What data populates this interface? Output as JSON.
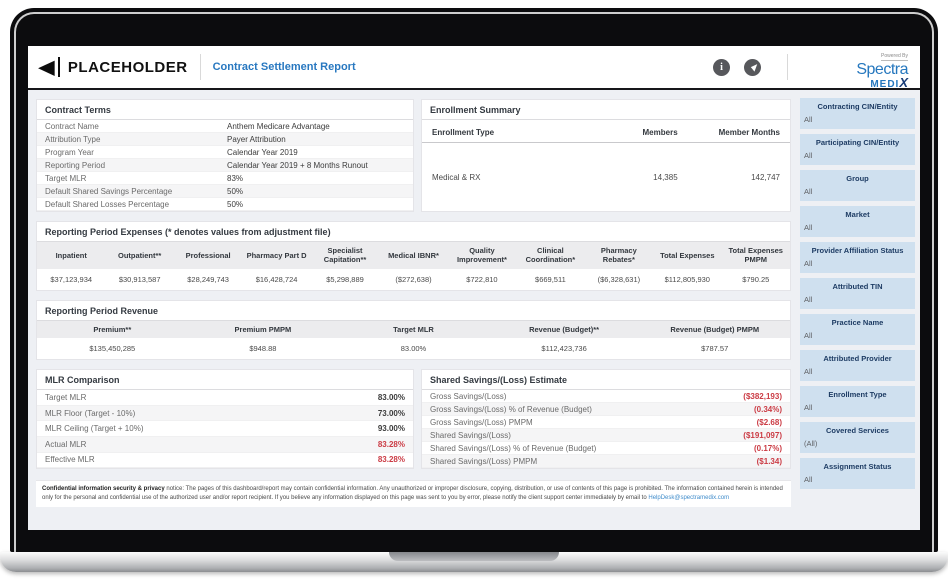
{
  "colors": {
    "accent_blue": "#2878c0",
    "negative_red": "#cb3b44",
    "filter_bg": "#cfe0ef",
    "filter_title": "#1e3c64"
  },
  "header": {
    "logo_text": "PLACEHOLDER",
    "report_title": "Contract Settlement Report",
    "info_icon": "i",
    "powered_by": "Powered By",
    "brand_name_top": "Spectra",
    "brand_name_bottom": "MEDI",
    "brand_x": "X"
  },
  "contract_terms": {
    "title": "Contract Terms",
    "rows": [
      {
        "label": "Contract Name",
        "value": "Anthem Medicare Advantage"
      },
      {
        "label": "Attribution Type",
        "value": "Payer Attribution"
      },
      {
        "label": "Program Year",
        "value": "Calendar Year 2019"
      },
      {
        "label": "Reporting Period",
        "value": "Calendar Year 2019 + 8 Months Runout"
      },
      {
        "label": "Target MLR",
        "value": "83%"
      },
      {
        "label": "Default Shared Savings Percentage",
        "value": "50%"
      },
      {
        "label": "Default Shared Losses Percentage",
        "value": "50%"
      }
    ]
  },
  "enrollment_summary": {
    "title": "Enrollment Summary",
    "columns": [
      "Enrollment Type",
      "Members",
      "Member Months"
    ],
    "rows": [
      {
        "type": "Medical & RX",
        "members": "14,385",
        "member_months": "142,747"
      }
    ]
  },
  "expenses": {
    "title": "Reporting Period Expenses (* denotes values from adjustment file)",
    "columns": [
      "Inpatient",
      "Outpatient**",
      "Professional",
      "Pharmacy Part D",
      "Specialist Capitation**",
      "Medical IBNR*",
      "Quality Improvement*",
      "Clinical Coordination*",
      "Pharmacy Rebates*",
      "Total Expenses",
      "Total Expenses PMPM"
    ],
    "values": [
      "$37,123,934",
      "$30,913,587",
      "$28,249,743",
      "$16,428,724",
      "$5,298,889",
      "($272,638)",
      "$722,810",
      "$669,511",
      "($6,328,631)",
      "$112,805,930",
      "$790.25"
    ]
  },
  "revenue": {
    "title": "Reporting Period Revenue",
    "columns": [
      "Premium**",
      "Premium PMPM",
      "Target MLR",
      "Revenue (Budget)**",
      "Revenue (Budget) PMPM"
    ],
    "values": [
      "$135,450,285",
      "$948.88",
      "83.00%",
      "$112,423,736",
      "$787.57"
    ]
  },
  "mlr_comparison": {
    "title": "MLR Comparison",
    "rows": [
      {
        "label": "Target MLR",
        "value": "83.00%",
        "negative": false
      },
      {
        "label": "MLR Floor (Target - 10%)",
        "value": "73.00%",
        "negative": false
      },
      {
        "label": "MLR Ceiling (Target + 10%)",
        "value": "93.00%",
        "negative": false
      },
      {
        "label": "Actual MLR",
        "value": "83.28%",
        "negative": true
      },
      {
        "label": "Effective MLR",
        "value": "83.28%",
        "negative": true
      }
    ]
  },
  "shared_savings": {
    "title": "Shared Savings/(Loss) Estimate",
    "rows": [
      {
        "label": "Gross Savings/(Loss)",
        "value": "($382,193)",
        "negative": true
      },
      {
        "label": "Gross Savings/(Loss) % of Revenue (Budget)",
        "value": "(0.34%)",
        "negative": true
      },
      {
        "label": "Gross Savings/(Loss) PMPM",
        "value": "($2.68)",
        "negative": true
      },
      {
        "label": "Shared Savings/(Loss)",
        "value": "($191,097)",
        "negative": true
      },
      {
        "label": "Shared Savings/(Loss) % of Revenue (Budget)",
        "value": "(0.17%)",
        "negative": true
      },
      {
        "label": "Shared Savings/(Loss) PMPM",
        "value": "($1.34)",
        "negative": true
      }
    ]
  },
  "filters": [
    {
      "label": "Contracting CIN/Entity",
      "value": "All"
    },
    {
      "label": "Participating CIN/Entity",
      "value": "All"
    },
    {
      "label": "Group",
      "value": "All"
    },
    {
      "label": "Market",
      "value": "All"
    },
    {
      "label": "Provider Affiliation Status",
      "value": "All"
    },
    {
      "label": "Attributed TIN",
      "value": "All"
    },
    {
      "label": "Practice Name",
      "value": "All"
    },
    {
      "label": "Attributed Provider",
      "value": "All"
    },
    {
      "label": "Enrollment Type",
      "value": "All"
    },
    {
      "label": "Covered Services",
      "value": "(All)"
    },
    {
      "label": "Assignment Status",
      "value": "All"
    }
  ],
  "footer": {
    "lead": "Confidential information security & privacy",
    "body": " notice: The pages of this dashboard/report may contain confidential information. Any unauthorized or improper disclosure, copying, distribution, or use of contents of this page is prohibited. The information contained herein is intended only for the personal and confidential use of the authorized user and/or report recipient. If you believe any information displayed on this page was sent to you by error, please notify the client support center immediately by email to ",
    "email": "HelpDesk@spectramedix.com"
  }
}
